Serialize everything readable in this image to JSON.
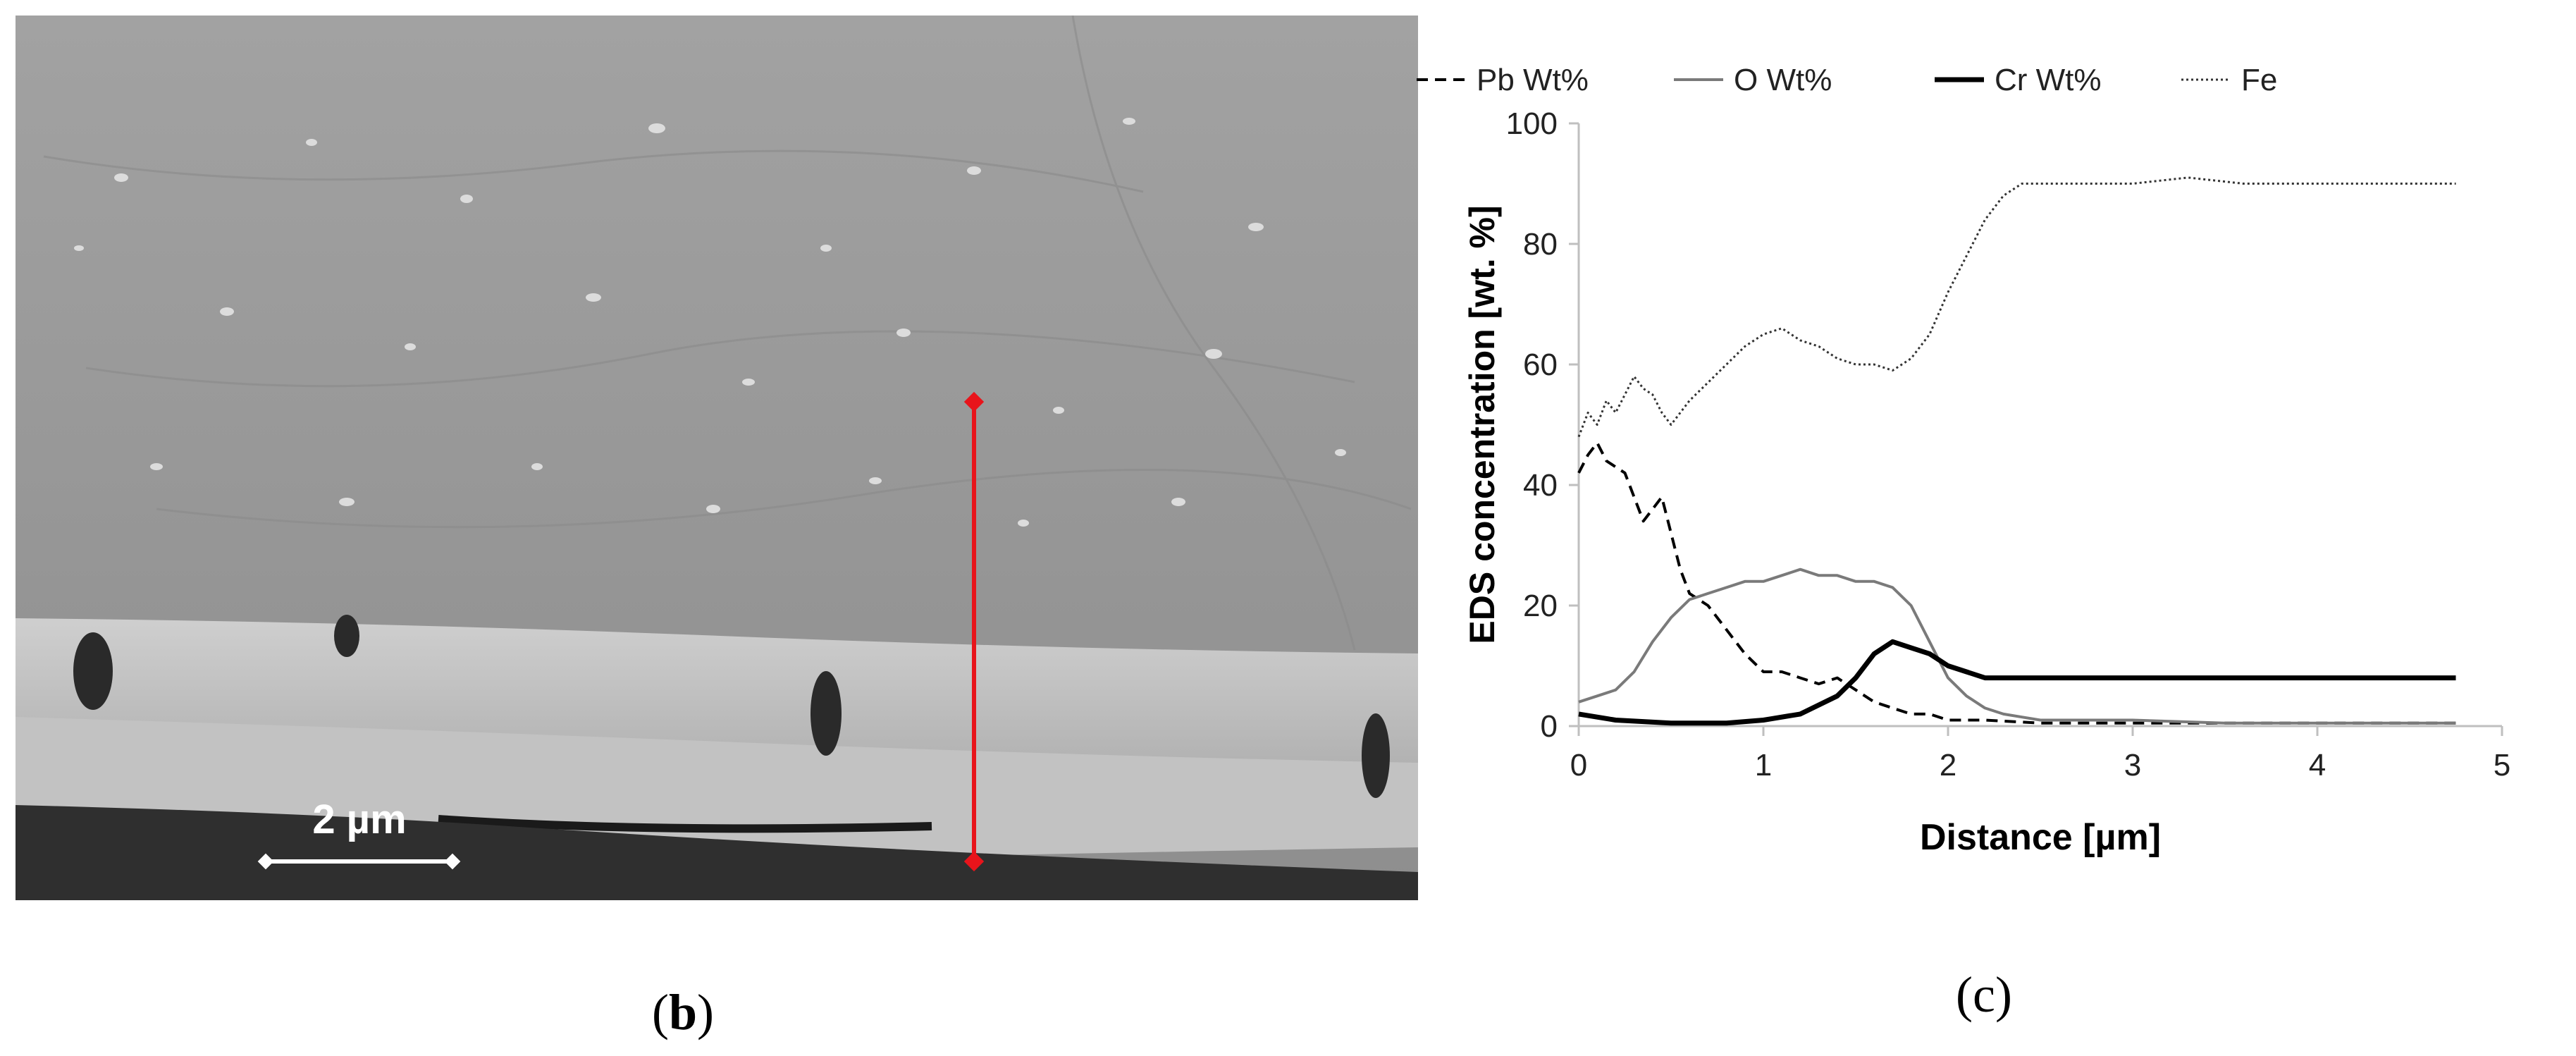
{
  "panel_b_label": "b",
  "panel_c_label": "c",
  "sem": {
    "scale_bar_label": "2 µm",
    "line_color": "#e8141b"
  },
  "chart_data": {
    "type": "line",
    "xlabel": "Distance [µm]",
    "ylabel": "EDS concentration [wt. %]",
    "xlim": [
      0,
      5
    ],
    "ylim": [
      0,
      100
    ],
    "xticks": [
      0,
      1,
      2,
      3,
      4,
      5
    ],
    "yticks": [
      0,
      20,
      40,
      60,
      80,
      100
    ],
    "grid": false,
    "legend_position": "top",
    "series": [
      {
        "name": "Pb Wt%",
        "style": "dashed",
        "color": "#000000",
        "x": [
          0,
          0.05,
          0.1,
          0.15,
          0.2,
          0.25,
          0.3,
          0.35,
          0.4,
          0.45,
          0.5,
          0.55,
          0.6,
          0.7,
          0.8,
          0.9,
          1.0,
          1.1,
          1.2,
          1.3,
          1.4,
          1.5,
          1.6,
          1.7,
          1.8,
          1.9,
          2.0,
          2.2,
          2.5,
          3.0,
          3.5,
          4.0,
          4.5,
          4.75
        ],
        "y": [
          42,
          45,
          47,
          44,
          43,
          42,
          38,
          34,
          36,
          38,
          32,
          26,
          22,
          20,
          16,
          12,
          9,
          9,
          8,
          7,
          8,
          6,
          4,
          3,
          2,
          2,
          1,
          1,
          0.5,
          0.5,
          0.5,
          0.5,
          0.5,
          0.5
        ]
      },
      {
        "name": "O Wt%",
        "style": "solid",
        "color": "#7a7a7a",
        "x": [
          0,
          0.1,
          0.2,
          0.3,
          0.4,
          0.5,
          0.6,
          0.7,
          0.8,
          0.9,
          1.0,
          1.1,
          1.2,
          1.3,
          1.4,
          1.5,
          1.6,
          1.7,
          1.8,
          1.9,
          2.0,
          2.1,
          2.2,
          2.3,
          2.4,
          2.5,
          3.0,
          3.5,
          4.0,
          4.5,
          4.75
        ],
        "y": [
          4,
          5,
          6,
          9,
          14,
          18,
          21,
          22,
          23,
          24,
          24,
          25,
          26,
          25,
          25,
          24,
          24,
          23,
          20,
          14,
          8,
          5,
          3,
          2,
          1.5,
          1,
          1,
          0.5,
          0.5,
          0.5,
          0.5
        ]
      },
      {
        "name": "Cr Wt%",
        "style": "solid-bold",
        "color": "#000000",
        "x": [
          0,
          0.2,
          0.5,
          0.8,
          1.0,
          1.2,
          1.4,
          1.5,
          1.6,
          1.7,
          1.8,
          1.9,
          2.0,
          2.1,
          2.2,
          2.4,
          2.6,
          3.0,
          3.5,
          4.0,
          4.5,
          4.75
        ],
        "y": [
          2,
          1,
          0.5,
          0.5,
          1,
          2,
          5,
          8,
          12,
          14,
          13,
          12,
          10,
          9,
          8,
          8,
          8,
          8,
          8,
          8,
          8,
          8
        ]
      },
      {
        "name": "Fe",
        "style": "dotted",
        "color": "#333333",
        "x": [
          0,
          0.05,
          0.1,
          0.15,
          0.2,
          0.25,
          0.3,
          0.35,
          0.4,
          0.45,
          0.5,
          0.6,
          0.7,
          0.8,
          0.9,
          1.0,
          1.1,
          1.2,
          1.3,
          1.4,
          1.5,
          1.6,
          1.7,
          1.8,
          1.9,
          2.0,
          2.1,
          2.2,
          2.3,
          2.4,
          2.5,
          2.7,
          3.0,
          3.3,
          3.6,
          4.0,
          4.3,
          4.6,
          4.75
        ],
        "y": [
          48,
          52,
          50,
          54,
          52,
          55,
          58,
          56,
          55,
          52,
          50,
          54,
          57,
          60,
          63,
          65,
          66,
          64,
          63,
          61,
          60,
          60,
          59,
          61,
          65,
          72,
          78,
          84,
          88,
          90,
          90,
          90,
          90,
          91,
          90,
          90,
          90,
          90,
          90
        ]
      }
    ]
  }
}
